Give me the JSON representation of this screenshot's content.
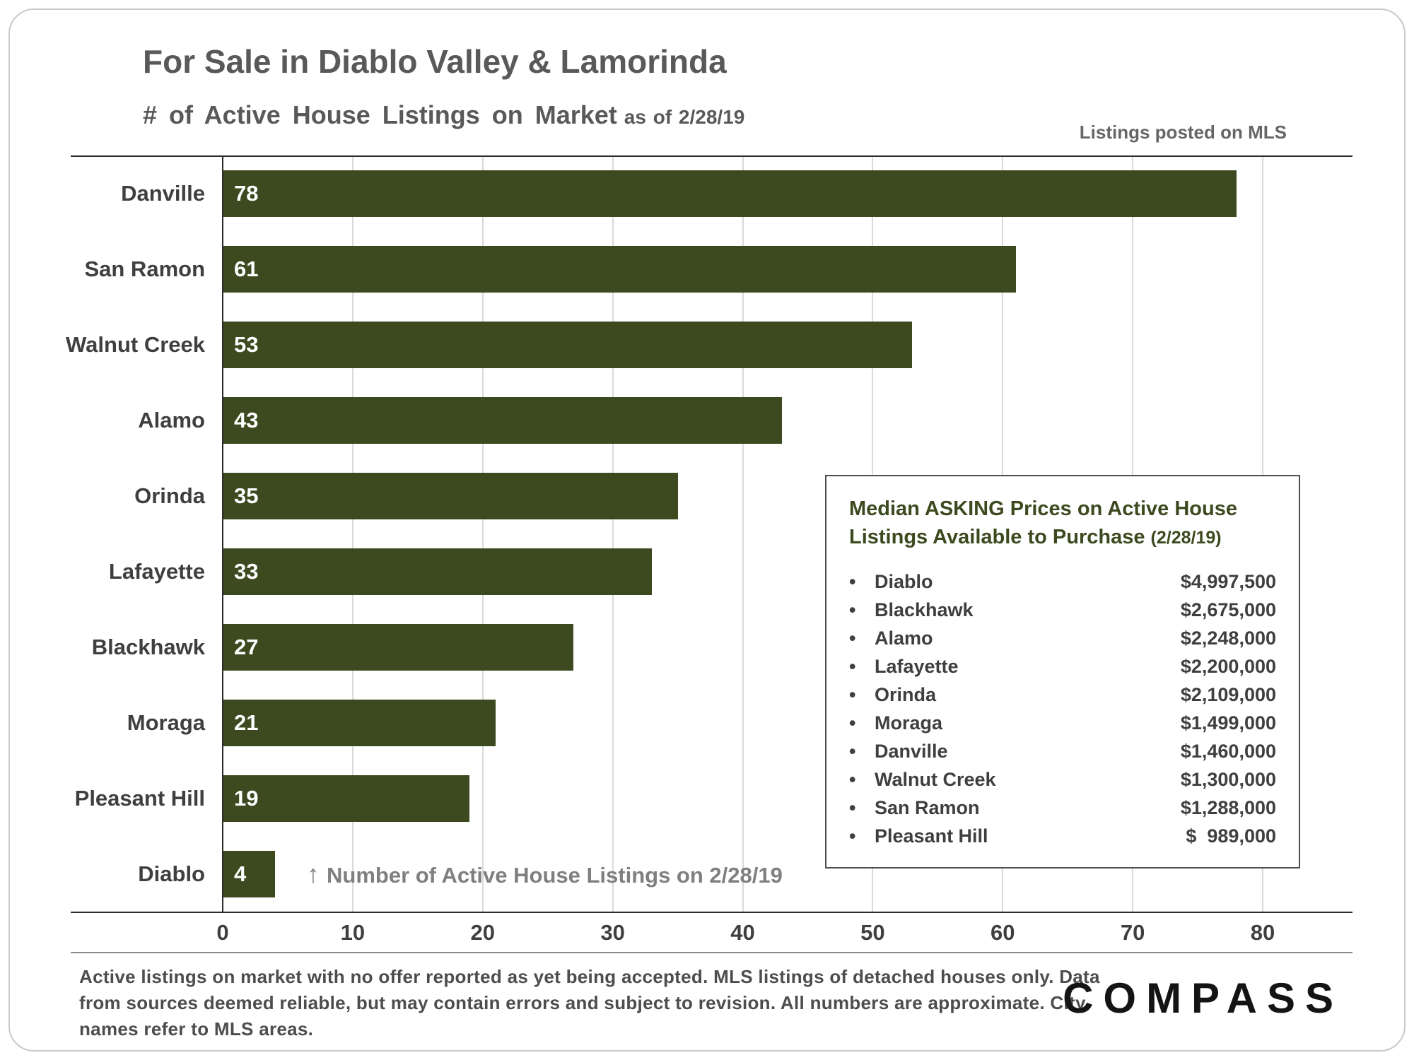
{
  "page": {
    "title": "For Sale in Diablo Valley & Lamorinda",
    "subtitle": "# of Active House Listings on Market",
    "subtitle_date": "as of 2/28/19",
    "header_note": "Listings posted on MLS",
    "annotation_arrow": "↑",
    "annotation_text": "Number of Active House Listings on 2/28/19",
    "footer": "Active listings on market with no offer reported as yet being accepted. MLS listings of detached houses only. Data from sources deemed reliable, but may contain errors and subject to revision. All numbers are approximate. City names refer to MLS areas.",
    "logo": "COMPASS"
  },
  "colors": {
    "bar_green": "#3d4a20",
    "heading_gray": "#595959",
    "text_dark": "#3f3f3f",
    "annotation_gray": "#7f7f7f"
  },
  "chart_data": {
    "type": "bar",
    "orientation": "horizontal",
    "title": "For Sale in Diablo Valley & Lamorinda",
    "subtitle": "# of Active House Listings on Market as of 2/28/19",
    "categories": [
      "Danville",
      "San Ramon",
      "Walnut Creek",
      "Alamo",
      "Orinda",
      "Lafayette",
      "Blackhawk",
      "Moraga",
      "Pleasant Hill",
      "Diablo"
    ],
    "values": [
      78,
      61,
      53,
      43,
      35,
      33,
      27,
      21,
      19,
      4
    ],
    "xlim": [
      0,
      91
    ],
    "xticks": [
      0,
      10,
      20,
      30,
      40,
      50,
      60,
      70,
      80
    ],
    "xlabel": "Number of Active House Listings on 2/28/19",
    "grid": "vertical",
    "bar_color": "#3d4a20",
    "value_labels": "inside-left"
  },
  "price_box": {
    "title_line1": "Median ASKING Prices on Active House",
    "title_line2": "Listings Available to Purchase",
    "title_date": "(2/28/19)",
    "bullet": "•",
    "items": [
      {
        "city": "Diablo",
        "price": "$4,997,500"
      },
      {
        "city": "Blackhawk",
        "price": "$2,675,000"
      },
      {
        "city": "Alamo",
        "price": "$2,248,000"
      },
      {
        "city": "Lafayette",
        "price": "$2,200,000"
      },
      {
        "city": "Orinda",
        "price": "$2,109,000"
      },
      {
        "city": "Moraga",
        "price": "$1,499,000"
      },
      {
        "city": "Danville",
        "price": "$1,460,000"
      },
      {
        "city": "Walnut Creek",
        "price": "$1,300,000"
      },
      {
        "city": "San Ramon",
        "price": "$1,288,000"
      },
      {
        "city": "Pleasant Hill",
        "price": "$  989,000"
      }
    ]
  }
}
